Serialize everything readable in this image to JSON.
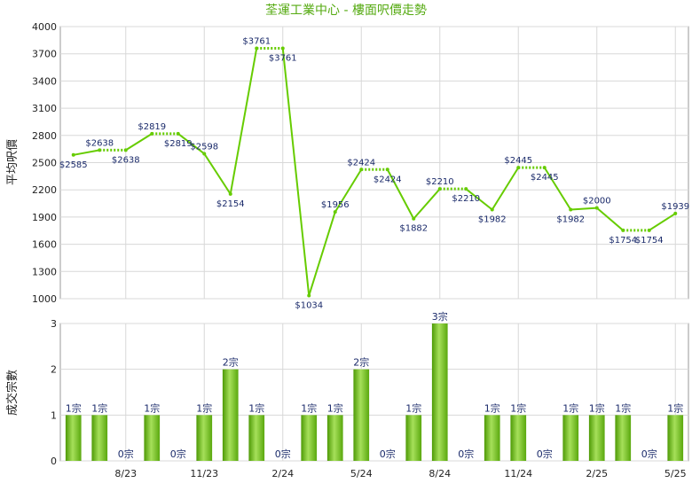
{
  "chart_data": [
    {
      "type": "line",
      "title": "荃運工業中心 - 樓面呎價走勢",
      "ylabel": "平均呎價",
      "color": "#66cc00",
      "ylim": [
        1000,
        4000
      ],
      "yticks": [
        1000,
        1300,
        1600,
        1900,
        2200,
        2500,
        2800,
        3100,
        3400,
        3700,
        4000
      ],
      "grid": true,
      "values": [
        2585,
        2638,
        2638,
        2819,
        2819,
        2598,
        2154,
        3761,
        3761,
        1034,
        1956,
        2424,
        2424,
        1882,
        2210,
        2210,
        1982,
        2445,
        2445,
        1982,
        2000,
        1754,
        1754,
        1939
      ],
      "value_labels": [
        "$2585",
        "$2638",
        "$2638",
        "$2819",
        "$2819",
        "$2598",
        "$2154",
        "$3761",
        "$3761",
        "$1034",
        "$1956",
        "$2424",
        "$2424",
        "$1882",
        "$2210",
        "$2210",
        "$1982",
        "$2445",
        "$2445",
        "$1982",
        "$2000",
        "$1754",
        "$1754",
        "$1939"
      ]
    },
    {
      "type": "bar",
      "ylabel": "成交宗數",
      "color": "#66bb11",
      "ylim": [
        0,
        3
      ],
      "yticks": [
        0,
        1,
        2,
        3
      ],
      "grid": true,
      "categories": [
        null,
        null,
        "8/23",
        null,
        null,
        "11/23",
        null,
        null,
        "2/24",
        null,
        null,
        "5/24",
        null,
        null,
        "8/24",
        null,
        null,
        "11/24",
        null,
        null,
        "2/25",
        null,
        null,
        "5/25"
      ],
      "values": [
        1,
        1,
        0,
        1,
        0,
        1,
        2,
        1,
        0,
        1,
        1,
        2,
        0,
        1,
        3,
        0,
        1,
        1,
        0,
        1,
        1,
        1,
        0,
        1
      ],
      "value_labels": [
        "1宗",
        "1宗",
        "0宗",
        "1宗",
        "0宗",
        "1宗",
        "2宗",
        "1宗",
        "0宗",
        "1宗",
        "1宗",
        "2宗",
        "0宗",
        "1宗",
        "3宗",
        "0宗",
        "1宗",
        "1宗",
        "0宗",
        "1宗",
        "1宗",
        "1宗",
        "0宗",
        "1宗"
      ]
    }
  ]
}
